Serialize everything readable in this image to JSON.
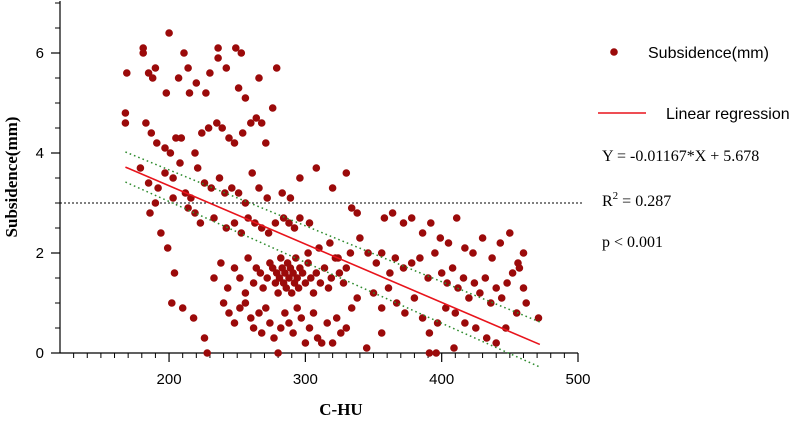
{
  "chart_data": {
    "type": "scatter",
    "title": "",
    "xlabel": "C-HU",
    "ylabel": "Subsidence(mm)",
    "xlim": [
      120,
      500
    ],
    "ylim": [
      0,
      7
    ],
    "xticks": [
      200,
      300,
      400,
      500
    ],
    "yticks": [
      0,
      2,
      4,
      6
    ],
    "x_minor_step": 10,
    "y_minor_step": 0.5,
    "grid": false,
    "legend_position": "right",
    "reference_line": {
      "y": 3,
      "style": "dotted"
    },
    "series": [
      {
        "name": "Subsidence(mm)",
        "color": "#9b0a0a",
        "points": [
          [
            169,
            5.6
          ],
          [
            168,
            4.8
          ],
          [
            168,
            4.6
          ],
          [
            181,
            6.1
          ],
          [
            181,
            6.0
          ],
          [
            185,
            5.6
          ],
          [
            188,
            5.5
          ],
          [
            190,
            5.7
          ],
          [
            200,
            6.4
          ],
          [
            198,
            5.2
          ],
          [
            207,
            5.5
          ],
          [
            211,
            6.0
          ],
          [
            215,
            5.2
          ],
          [
            220,
            5.4
          ],
          [
            230,
            5.6
          ],
          [
            236,
            5.9
          ],
          [
            236,
            6.1
          ],
          [
            242,
            5.7
          ],
          [
            249,
            6.1
          ],
          [
            253,
            6.0
          ],
          [
            266,
            5.5
          ],
          [
            279,
            5.7
          ],
          [
            214,
            5.7
          ],
          [
            227,
            5.2
          ],
          [
            251,
            5.3
          ],
          [
            256,
            5.1
          ],
          [
            183,
            4.6
          ],
          [
            187,
            4.4
          ],
          [
            191,
            4.2
          ],
          [
            197,
            4.1
          ],
          [
            201,
            4.0
          ],
          [
            205,
            4.3
          ],
          [
            209,
            4.3
          ],
          [
            219,
            4.0
          ],
          [
            224,
            4.4
          ],
          [
            229,
            4.5
          ],
          [
            235,
            4.6
          ],
          [
            239,
            4.5
          ],
          [
            244,
            4.3
          ],
          [
            248,
            4.2
          ],
          [
            254,
            4.4
          ],
          [
            260,
            4.6
          ],
          [
            264,
            4.7
          ],
          [
            268,
            4.6
          ],
          [
            271,
            4.2
          ],
          [
            276,
            4.9
          ],
          [
            179,
            3.7
          ],
          [
            185,
            3.4
          ],
          [
            192,
            3.3
          ],
          [
            197,
            3.6
          ],
          [
            203,
            3.5
          ],
          [
            208,
            3.8
          ],
          [
            212,
            3.2
          ],
          [
            216,
            3.1
          ],
          [
            221,
            3.7
          ],
          [
            226,
            3.4
          ],
          [
            231,
            3.3
          ],
          [
            237,
            3.5
          ],
          [
            241,
            3.2
          ],
          [
            246,
            3.3
          ],
          [
            251,
            3.2
          ],
          [
            256,
            3.0
          ],
          [
            261,
            3.6
          ],
          [
            266,
            3.3
          ],
          [
            272,
            3.1
          ],
          [
            283,
            3.2
          ],
          [
            289,
            3.1
          ],
          [
            296,
            3.5
          ],
          [
            186,
            2.8
          ],
          [
            190,
            3.0
          ],
          [
            203,
            3.1
          ],
          [
            214,
            2.9
          ],
          [
            219,
            2.8
          ],
          [
            223,
            2.6
          ],
          [
            233,
            2.7
          ],
          [
            242,
            2.5
          ],
          [
            248,
            2.6
          ],
          [
            253,
            2.4
          ],
          [
            258,
            2.7
          ],
          [
            263,
            2.6
          ],
          [
            268,
            2.5
          ],
          [
            273,
            2.4
          ],
          [
            278,
            2.6
          ],
          [
            284,
            2.7
          ],
          [
            288,
            2.6
          ],
          [
            292,
            2.5
          ],
          [
            296,
            2.7
          ],
          [
            303,
            2.6
          ],
          [
            308,
            3.7
          ],
          [
            320,
            3.3
          ],
          [
            194,
            2.4
          ],
          [
            199,
            2.1
          ],
          [
            204,
            1.6
          ],
          [
            202,
            1.0
          ],
          [
            210,
            0.9
          ],
          [
            218,
            0.7
          ],
          [
            226,
            0.3
          ],
          [
            228,
            0.0
          ],
          [
            233,
            1.5
          ],
          [
            238,
            1.8
          ],
          [
            243,
            1.3
          ],
          [
            248,
            1.7
          ],
          [
            252,
            1.5
          ],
          [
            256,
            1.2
          ],
          [
            258,
            1.9
          ],
          [
            262,
            1.4
          ],
          [
            264,
            1.7
          ],
          [
            267,
            1.6
          ],
          [
            269,
            1.3
          ],
          [
            272,
            1.5
          ],
          [
            274,
            1.8
          ],
          [
            276,
            1.7
          ],
          [
            278,
            1.4
          ],
          [
            279,
            1.6
          ],
          [
            280,
            1.2
          ],
          [
            281,
            1.5
          ],
          [
            282,
            1.9
          ],
          [
            283,
            1.7
          ],
          [
            284,
            1.4
          ],
          [
            285,
            1.6
          ],
          [
            286,
            1.3
          ],
          [
            287,
            1.8
          ],
          [
            288,
            1.5
          ],
          [
            289,
            1.7
          ],
          [
            290,
            1.2
          ],
          [
            291,
            1.6
          ],
          [
            292,
            1.4
          ],
          [
            293,
            1.9
          ],
          [
            294,
            1.5
          ],
          [
            295,
            1.3
          ],
          [
            296,
            1.7
          ],
          [
            298,
            1.6
          ],
          [
            300,
            1.4
          ],
          [
            302,
            1.8
          ],
          [
            304,
            1.5
          ],
          [
            306,
            1.2
          ],
          [
            308,
            1.6
          ],
          [
            311,
            1.4
          ],
          [
            314,
            1.7
          ],
          [
            317,
            1.3
          ],
          [
            319,
            1.5
          ],
          [
            322,
            1.9
          ],
          [
            325,
            1.6
          ],
          [
            328,
            1.4
          ],
          [
            330,
            1.7
          ],
          [
            240,
            1.0
          ],
          [
            244,
            0.8
          ],
          [
            248,
            0.6
          ],
          [
            252,
            0.9
          ],
          [
            256,
            1.0
          ],
          [
            260,
            0.7
          ],
          [
            262,
            0.5
          ],
          [
            266,
            0.8
          ],
          [
            268,
            0.4
          ],
          [
            271,
            0.9
          ],
          [
            274,
            0.6
          ],
          [
            277,
            0.3
          ],
          [
            280,
            0.0
          ],
          [
            282,
            0.5
          ],
          [
            285,
            0.8
          ],
          [
            288,
            0.6
          ],
          [
            291,
            0.4
          ],
          [
            294,
            0.9
          ],
          [
            297,
            0.7
          ],
          [
            300,
            0.2
          ],
          [
            303,
            0.5
          ],
          [
            306,
            0.8
          ],
          [
            309,
            0.3
          ],
          [
            312,
            0.2
          ],
          [
            316,
            0.6
          ],
          [
            320,
            0.2
          ],
          [
            323,
            0.7
          ],
          [
            326,
            0.4
          ],
          [
            330,
            0.5
          ],
          [
            334,
            0.9
          ],
          [
            338,
            1.1
          ],
          [
            345,
            0.1
          ],
          [
            302,
            2.0
          ],
          [
            310,
            2.1
          ],
          [
            318,
            2.2
          ],
          [
            324,
            1.9
          ],
          [
            333,
            2.0
          ],
          [
            340,
            2.3
          ],
          [
            346,
            2.0
          ],
          [
            352,
            1.8
          ],
          [
            356,
            2.0
          ],
          [
            362,
            1.6
          ],
          [
            366,
            1.9
          ],
          [
            372,
            1.7
          ],
          [
            378,
            1.8
          ],
          [
            384,
            1.9
          ],
          [
            390,
            1.5
          ],
          [
            395,
            2.0
          ],
          [
            400,
            1.6
          ],
          [
            404,
            1.4
          ],
          [
            408,
            1.7
          ],
          [
            412,
            1.3
          ],
          [
            416,
            1.5
          ],
          [
            420,
            1.1
          ],
          [
            424,
            1.4
          ],
          [
            428,
            1.2
          ],
          [
            432,
            1.5
          ],
          [
            436,
            1.0
          ],
          [
            440,
            1.3
          ],
          [
            444,
            1.1
          ],
          [
            448,
            1.4
          ],
          [
            452,
            1.6
          ],
          [
            456,
            1.8
          ],
          [
            460,
            1.3
          ],
          [
            350,
            1.2
          ],
          [
            356,
            0.9
          ],
          [
            361,
            1.3
          ],
          [
            367,
            1.0
          ],
          [
            373,
            0.8
          ],
          [
            380,
            1.1
          ],
          [
            386,
            0.7
          ],
          [
            391,
            0.4
          ],
          [
            397,
            0.6
          ],
          [
            403,
            0.9
          ],
          [
            410,
            0.8
          ],
          [
            417,
            0.6
          ],
          [
            425,
            0.5
          ],
          [
            433,
            0.3
          ],
          [
            440,
            0.2
          ],
          [
            447,
            0.5
          ],
          [
            455,
            0.8
          ],
          [
            462,
            1.0
          ],
          [
            471,
            0.7
          ],
          [
            358,
            2.7
          ],
          [
            364,
            2.8
          ],
          [
            372,
            2.6
          ],
          [
            378,
            2.7
          ],
          [
            386,
            2.4
          ],
          [
            392,
            2.6
          ],
          [
            399,
            2.3
          ],
          [
            405,
            2.2
          ],
          [
            411,
            2.7
          ],
          [
            417,
            2.1
          ],
          [
            423,
            2.0
          ],
          [
            430,
            2.3
          ],
          [
            437,
            1.9
          ],
          [
            443,
            2.2
          ],
          [
            450,
            2.4
          ],
          [
            457,
            1.7
          ],
          [
            460,
            2.0
          ],
          [
            330,
            3.6
          ],
          [
            334,
            2.9
          ],
          [
            338,
            2.8
          ],
          [
            396,
            0.0
          ],
          [
            409,
            0.1
          ],
          [
            391,
            0.0
          ],
          [
            356,
            0.4
          ]
        ]
      },
      {
        "name": "Linear regression",
        "color": "#e8141c",
        "x": [
          168,
          472
        ],
        "y": [
          3.718,
          0.171
        ]
      }
    ],
    "confidence_band": {
      "color": "#2e8b2e",
      "upper": {
        "x": [
          168,
          472
        ],
        "y": [
          4.02,
          0.62
        ]
      },
      "lower": {
        "x": [
          168,
          472
        ],
        "y": [
          3.42,
          -0.28
        ]
      }
    },
    "annotations": {
      "equation": "Y = -0.01167*X + 5.678",
      "r_squared_prefix": "R",
      "r_squared_exponent": "2",
      "r_squared_value": " = 0.287",
      "p_value": "p < 0.001"
    }
  }
}
